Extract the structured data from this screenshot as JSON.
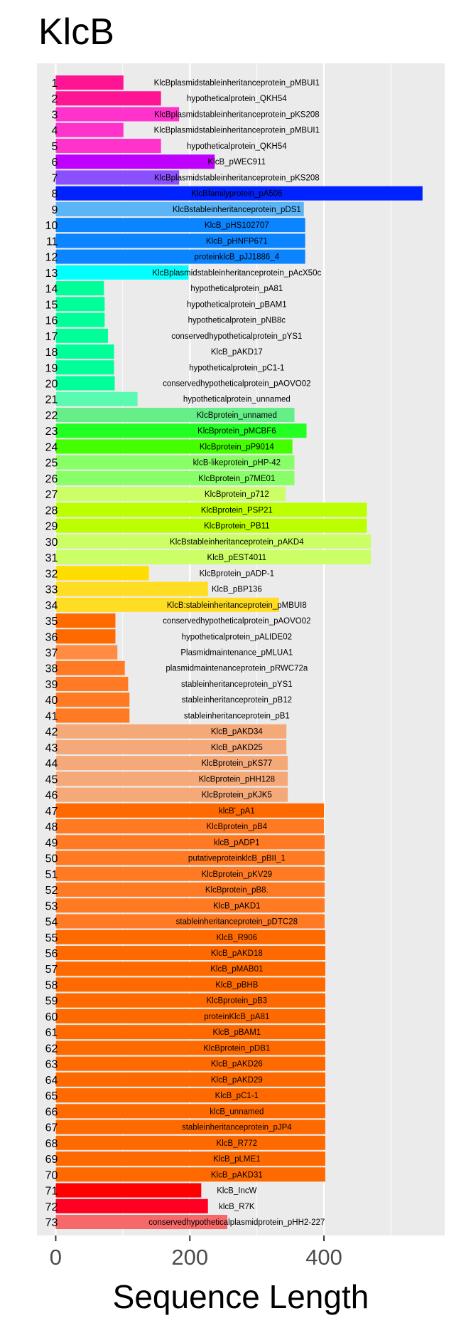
{
  "chart_data": {
    "type": "bar",
    "orientation": "horizontal",
    "title": "KlcB",
    "xlabel": "Sequence Length",
    "ylabel": "",
    "xlim": [
      -28,
      580
    ],
    "xticks": [
      0,
      200,
      400
    ],
    "grid": true,
    "legend": "none",
    "categories": [
      "1",
      "2",
      "3",
      "4",
      "5",
      "6",
      "7",
      "8",
      "9",
      "10",
      "11",
      "12",
      "13",
      "14",
      "15",
      "16",
      "17",
      "18",
      "19",
      "20",
      "21",
      "22",
      "23",
      "24",
      "25",
      "26",
      "27",
      "28",
      "29",
      "30",
      "31",
      "32",
      "33",
      "34",
      "35",
      "36",
      "37",
      "38",
      "39",
      "40",
      "41",
      "42",
      "43",
      "44",
      "45",
      "46",
      "47",
      "48",
      "49",
      "50",
      "51",
      "52",
      "53",
      "54",
      "55",
      "56",
      "57",
      "58",
      "59",
      "60",
      "61",
      "62",
      "63",
      "64",
      "65",
      "66",
      "67",
      "68",
      "69",
      "70",
      "71",
      "72",
      "73"
    ],
    "labels": [
      "KlcBplasmidstableinheritanceprotein_pMBUI1",
      "hypotheticalprotein_QKH54",
      "KlcBplasmidstableinheritanceprotein_pKS208",
      "KlcBplasmidstableinheritanceprotein_pMBUI1",
      "hypotheticalprotein_QKH54",
      "KlcB_pWEC911",
      "KlcBplasmidstableinheritanceprotein_pKS208",
      "KlcBfamilyprotein_pA506",
      "KlcBstableinheritanceprotein_pDS1",
      "KlcB_pHS102707",
      "KlcB_pHNFP671",
      "proteinklcB_pJJ1886_4",
      "KlcBplasmidstableinheritanceprotein_pAcX50c",
      "hypotheticalprotein_pA81",
      "hypotheticalprotein_pBAM1",
      "hypotheticalprotein_pNB8c",
      "conservedhypotheticalprotein_pYS1",
      "KlcB_pAKD17",
      "hypotheticalprotein_pC1-1",
      "conservedhypotheticalprotein_pAOVO02",
      "hypotheticalprotein_unnamed",
      "KlcBprotein_unnamed",
      "KlcBprotein_pMCBF6",
      "KlcBprotein_pP9014",
      "klcB-likeprotein_pHP-42",
      "KlcBprotein_p7ME01",
      "KlcBprotein_p712",
      "KlcBprotein_PSP21",
      "KlcBprotein_PB11",
      "KlcBstableinheritanceprotein_pAKD4",
      "KlcB_pEST4011",
      "KlcBprotein_pADP-1",
      "KlcB_pBP136",
      "KlcB:stableinheritanceprotein_pMBUI8",
      "conservedhypotheticalprotein_pAOVO02",
      "hypotheticalprotein_pALIDE02",
      "Plasmidmaintenance_pMLUA1",
      "plasmidmaintenanceprotein_pRWC72a",
      "stableinheritanceprotein_pYS1",
      "stableinheritanceprotein_pB12",
      "stableinheritanceprotein_pB1",
      "KlcB_pAKD34",
      "KlcB_pAKD25",
      "KlcBprotein_pKS77",
      "KlcBprotein_pHH128",
      "KlcBprotein_pKJK5",
      "klcB'_pA1",
      "KlcBprotein_pB4",
      "klcB_pADP1",
      "putativeproteinklcB_pBII_1",
      "KlcBprotein_pKV29",
      "KlcBprotein_pB8.",
      "KlcB_pAKD1",
      "stableinheritanceprotein_pDTC28",
      "KlcB_R906",
      "KlcB_pAKD18",
      "KlcB_pMAB01",
      "KlcB_pBHB",
      "KlcBprotein_pB3",
      "proteinKlcB_pA81",
      "KlcB_pBAM1",
      "KlcBprotein_pDB1",
      "KlcB_pAKD26",
      "KlcB_pAKD29",
      "KlcB_pC1-1",
      "klcB_unnamed",
      "stableinheritanceprotein_pJP4",
      "KlcB_R772",
      "KlcB_pLME1",
      "KlcB_pAKD31",
      "KlcB_IncW",
      "klcB_R7K",
      "conservedhypotheticalplasmidprotein_pHH2-227"
    ],
    "values": [
      101,
      157,
      184,
      101,
      157,
      237,
      184,
      547,
      370,
      372,
      372,
      372,
      198,
      72,
      73,
      73,
      78,
      87,
      87,
      88,
      122,
      356,
      374,
      353,
      356,
      356,
      343,
      464,
      464,
      470,
      470,
      139,
      227,
      333,
      89,
      89,
      92,
      103,
      108,
      110,
      110,
      344,
      344,
      346,
      346,
      346,
      400,
      400,
      401,
      401,
      401,
      401,
      401,
      401,
      402,
      402,
      402,
      402,
      402,
      402,
      402,
      402,
      402,
      402,
      402,
      402,
      402,
      402,
      402,
      402,
      217,
      227,
      256
    ],
    "colors": [
      "#FF1493",
      "#FF1493",
      "#FF33CC",
      "#FF33CC",
      "#FF33CC",
      "#BF00FF",
      "#8A4FFF",
      "#0022FF",
      "#5AB4F5",
      "#0A84FF",
      "#0A84FF",
      "#0A84FF",
      "#00FFFF",
      "#00FF99",
      "#00FF99",
      "#00FF99",
      "#00FF99",
      "#00FF99",
      "#00FF99",
      "#00FF99",
      "#5AFAB0",
      "#66EE88",
      "#22FF22",
      "#44FF00",
      "#88FF66",
      "#88FF66",
      "#CCFF66",
      "#BBFF00",
      "#BBFF00",
      "#CCFF66",
      "#CCFF66",
      "#FFDD00",
      "#FFDD22",
      "#FFDD22",
      "#FF6A00",
      "#FF6A00",
      "#FF8C42",
      "#FF7A22",
      "#FF7A22",
      "#FF7A22",
      "#FF7A22",
      "#F5A878",
      "#F5A878",
      "#F5A878",
      "#F5A878",
      "#F5A878",
      "#FF6A00",
      "#FF7A22",
      "#FF7A22",
      "#FF7A22",
      "#FF7A22",
      "#FF7A22",
      "#FF7A22",
      "#FF7A22",
      "#FF6A00",
      "#FF6A00",
      "#FF6A00",
      "#FF6A00",
      "#FF6A00",
      "#FF6A00",
      "#FF6A00",
      "#FF6A00",
      "#FF6A00",
      "#FF6A00",
      "#FF6A00",
      "#FF6A00",
      "#FF6A00",
      "#FF6A00",
      "#FF6A00",
      "#FF6A00",
      "#FF0000",
      "#FF0022",
      "#F76868"
    ],
    "panel_background": "#EBEBEB",
    "gridline_color": "#FFFFFF"
  }
}
